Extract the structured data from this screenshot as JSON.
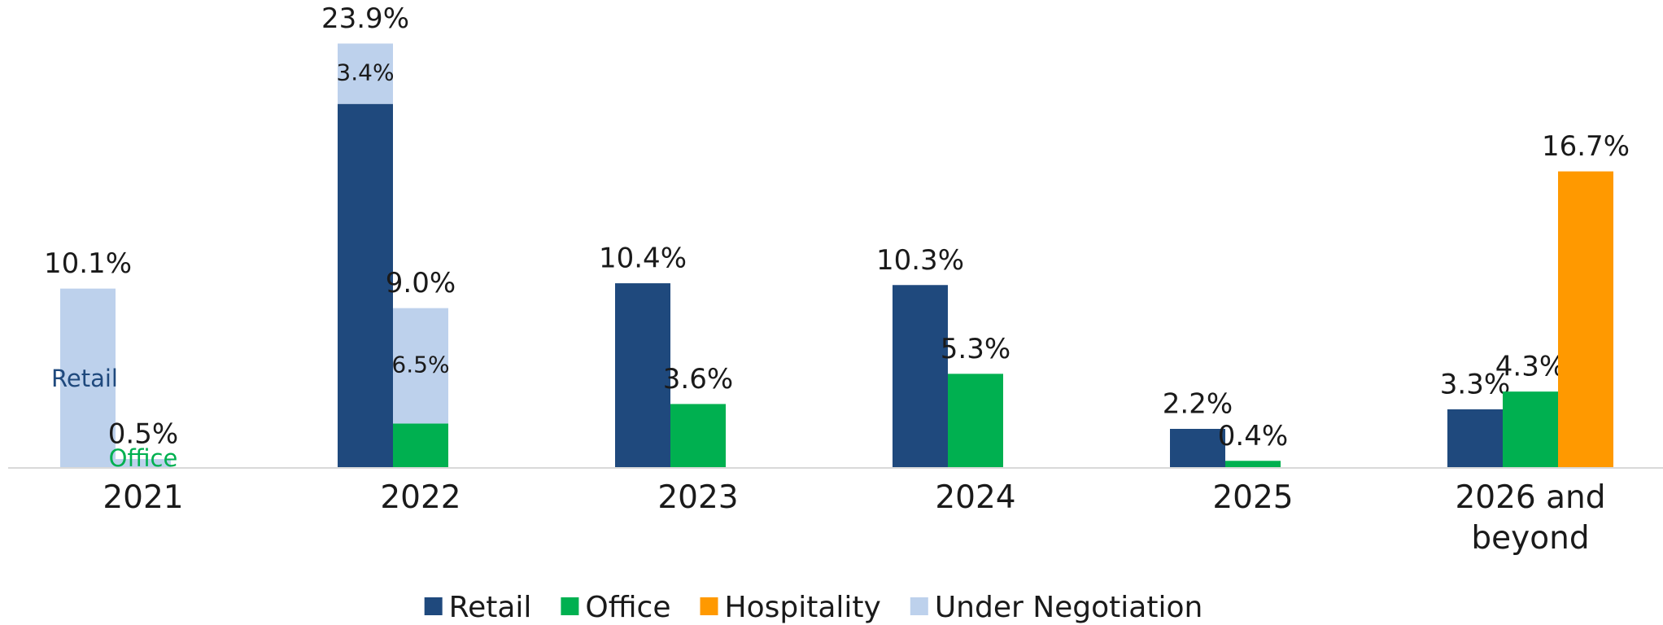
{
  "chart_data": {
    "type": "bar",
    "categories": [
      "2021",
      "2022",
      "2023",
      "2024",
      "2025",
      "2026 and beyond"
    ],
    "ylim": [
      0,
      26
    ],
    "series": [
      {
        "name": "Retail",
        "color": "#1f497d",
        "values": [
          0,
          20.5,
          10.4,
          10.3,
          2.2,
          3.3
        ],
        "totals": [
          10.1,
          23.9,
          10.4,
          10.3,
          2.2,
          3.3
        ],
        "total_labels": [
          "10.1%",
          "23.9%",
          "10.4%",
          "10.3%",
          "2.2%",
          "3.3%"
        ]
      },
      {
        "name": "Office",
        "color": "#00b050",
        "values": [
          0,
          2.5,
          3.6,
          5.3,
          0.4,
          4.3
        ],
        "totals": [
          0.5,
          9.0,
          3.6,
          5.3,
          0.4,
          4.3
        ],
        "total_labels": [
          "0.5%",
          "9.0%",
          "3.6%",
          "5.3%",
          "0.4%",
          "4.3%"
        ]
      },
      {
        "name": "Hospitality",
        "color": "#ff9900",
        "values": [
          null,
          null,
          null,
          null,
          null,
          16.7
        ],
        "totals": [
          null,
          null,
          null,
          null,
          null,
          16.7
        ],
        "total_labels": [
          null,
          null,
          null,
          null,
          null,
          "16.7%"
        ]
      },
      {
        "name": "Under Negotiation",
        "color": "#bdd1ec",
        "on_retail": {
          "values": [
            10.1,
            3.4,
            null,
            null,
            null,
            null
          ],
          "value_labels": [
            null,
            "3.4%",
            null,
            null,
            null,
            null
          ]
        },
        "on_office": {
          "values": [
            0.5,
            6.5,
            null,
            null,
            null,
            null
          ],
          "value_labels": [
            null,
            "6.5%",
            null,
            null,
            null,
            null
          ]
        }
      }
    ],
    "annotations": [
      "Retail",
      "Office"
    ],
    "legend": "bottom"
  }
}
